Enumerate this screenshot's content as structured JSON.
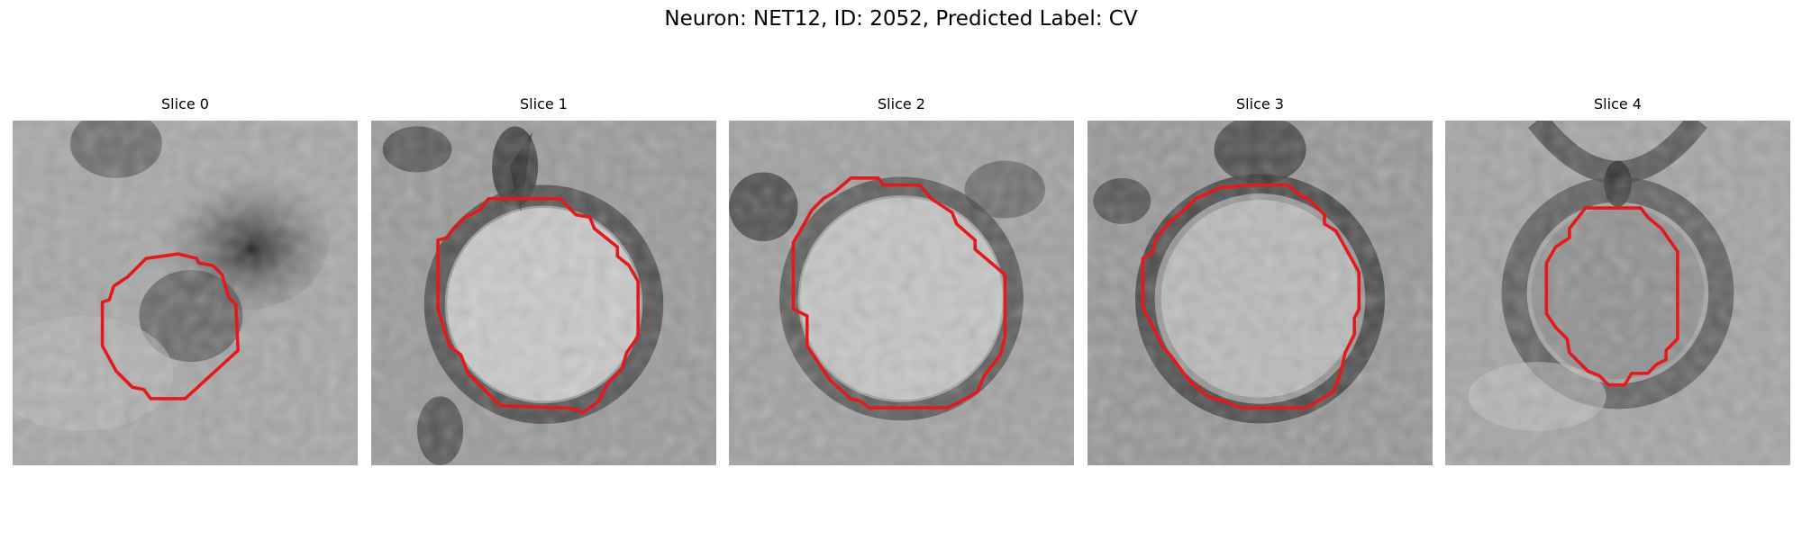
{
  "figure": {
    "title": "Neuron: NET12, ID: 2052, Predicted Label: CV"
  },
  "panels": [
    {
      "label": "Slice 0"
    },
    {
      "label": "Slice 1"
    },
    {
      "label": "Slice 2"
    },
    {
      "label": "Slice 3"
    },
    {
      "label": "Slice 4"
    }
  ],
  "colors": {
    "contour": "#e31a1c",
    "background": "#ffffff"
  }
}
